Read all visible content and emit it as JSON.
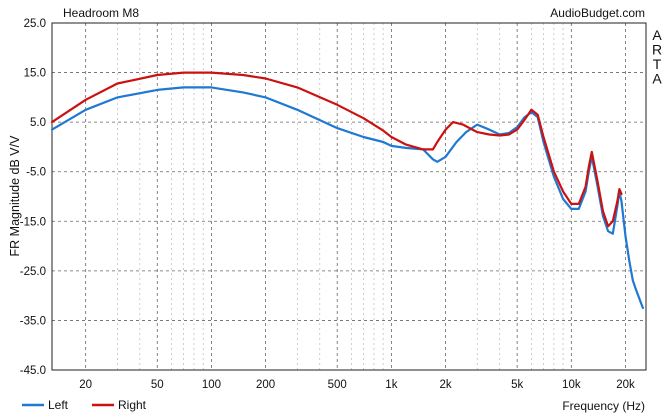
{
  "chart_data": {
    "type": "line",
    "title": "Headroom M8",
    "source_label": "AudioBudget.com",
    "side_label": "ARTA",
    "xlabel": "Frequency (Hz)",
    "ylabel": "FR Magnitude dB V/V",
    "xscale": "log",
    "xlim": [
      13,
      26000
    ],
    "ylim": [
      -45,
      25
    ],
    "y_ticks": [
      25,
      15,
      5,
      -5,
      -15,
      -25,
      -35,
      -45
    ],
    "y_tick_labels": [
      "25.0",
      "15.0",
      "5.0",
      "-5.0",
      "-15.0",
      "-25.0",
      "-35.0",
      "-45.0"
    ],
    "x_ticks": [
      20,
      50,
      100,
      200,
      500,
      1000,
      2000,
      5000,
      10000,
      20000
    ],
    "x_tick_labels": [
      "20",
      "50",
      "100",
      "200",
      "500",
      "1k",
      "2k",
      "5k",
      "10k",
      "20k"
    ],
    "grid": true,
    "legend_position": "bottom-left",
    "series": [
      {
        "name": "Left",
        "color": "#1f78d1",
        "x": [
          13,
          20,
          30,
          50,
          70,
          100,
          150,
          200,
          300,
          500,
          700,
          900,
          1000,
          1200,
          1500,
          1700,
          1800,
          2000,
          2300,
          2600,
          3000,
          3500,
          4000,
          4500,
          5000,
          5500,
          6000,
          6500,
          7000,
          8000,
          9000,
          10000,
          11000,
          12000,
          12500,
          13000,
          14000,
          15000,
          16000,
          17000,
          18000,
          18500,
          19000,
          20000,
          21000,
          22000,
          23000,
          25000
        ],
        "y": [
          3.5,
          7.5,
          10.0,
          11.5,
          12.0,
          12.0,
          11.0,
          10.0,
          7.5,
          3.8,
          2.0,
          1.0,
          0.2,
          -0.2,
          -0.5,
          -2.5,
          -3.0,
          -2.0,
          1.0,
          3.0,
          4.5,
          3.5,
          2.5,
          2.8,
          4.0,
          6.0,
          7.0,
          6.0,
          1.0,
          -6.0,
          -10.5,
          -12.5,
          -12.5,
          -9.0,
          -5.0,
          -2.0,
          -8.0,
          -14.0,
          -17.0,
          -17.5,
          -12.0,
          -9.0,
          -11.0,
          -18.0,
          -23.0,
          -27.0,
          -29.0,
          -32.5
        ]
      },
      {
        "name": "Right",
        "color": "#cc1111",
        "x": [
          13,
          20,
          30,
          50,
          70,
          100,
          150,
          200,
          300,
          500,
          700,
          900,
          1000,
          1200,
          1500,
          1700,
          1800,
          2000,
          2200,
          2500,
          3000,
          3500,
          4000,
          4500,
          5000,
          5500,
          6000,
          6500,
          7000,
          8000,
          9000,
          10000,
          11000,
          12000,
          12500,
          13000,
          14000,
          15000,
          16000,
          17000,
          18000,
          18500,
          19000
        ],
        "y": [
          5.0,
          9.5,
          12.8,
          14.5,
          15.0,
          15.0,
          14.5,
          13.8,
          12.0,
          8.5,
          5.8,
          3.3,
          2.0,
          0.5,
          -0.5,
          -0.5,
          1.0,
          3.5,
          5.0,
          4.5,
          3.0,
          2.5,
          2.3,
          2.5,
          3.5,
          5.5,
          7.5,
          6.5,
          2.0,
          -5.0,
          -9.0,
          -11.5,
          -11.5,
          -8.0,
          -4.0,
          -1.0,
          -7.0,
          -13.0,
          -16.0,
          -15.0,
          -11.0,
          -8.5,
          -9.5
        ]
      }
    ]
  }
}
